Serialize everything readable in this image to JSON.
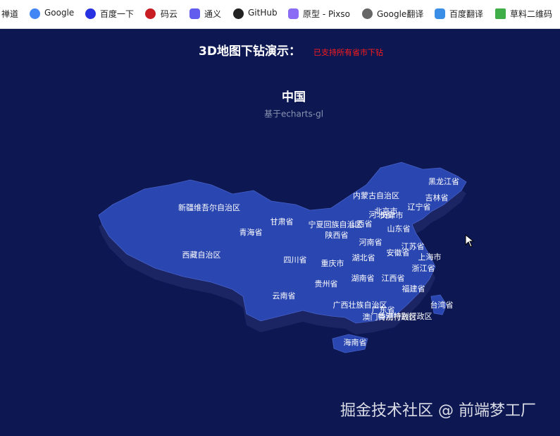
{
  "bookmarks": [
    "禅道",
    "Google",
    "百度一下",
    "码云",
    "通义",
    "GitHub",
    "原型 - Pixso",
    "Google翻译",
    "百度翻译",
    "草料二维码"
  ],
  "header": {
    "title": "3D地图下钻演示：",
    "note": "已支持所有省市下钻"
  },
  "map": {
    "title": "中国",
    "subtitle": "基于echarts-gl",
    "labels": [
      "新疆维吾尔自治区",
      "西藏自治区",
      "青海省",
      "甘肃省",
      "宁夏回族自治区",
      "内蒙古自治区",
      "黑龙江省",
      "吉林省",
      "辽宁省",
      "北京市",
      "河北省",
      "天津市",
      "山西省",
      "陕西省",
      "山东省",
      "河南省",
      "江苏省",
      "安徽省",
      "上海市",
      "四川省",
      "重庆市",
      "湖北省",
      "浙江省",
      "贵州省",
      "湖南省",
      "江西省",
      "福建省",
      "云南省",
      "广西壮族自治区",
      "广东省",
      "台湾省",
      "澳门特别行政区",
      "香港特别行政区",
      "海南省"
    ]
  },
  "watermark": "掘金技术社区 @ 前端梦工厂"
}
